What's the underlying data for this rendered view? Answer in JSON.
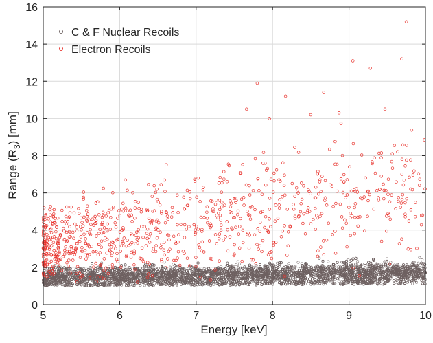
{
  "chart_data": {
    "type": "scatter",
    "xlabel": "Energy [keV]",
    "ylabel_parts": [
      "Range (R",
      "3",
      ") [mm]"
    ],
    "xlim": [
      5,
      10
    ],
    "ylim": [
      0,
      16
    ],
    "x_ticks": [
      5,
      6,
      7,
      8,
      9,
      10
    ],
    "y_ticks": [
      0,
      2,
      4,
      6,
      8,
      10,
      12,
      14,
      16
    ],
    "grid": true,
    "legend_position": "top-left",
    "series": [
      {
        "name": "C & F Nuclear Recoils",
        "color": "#6e6262",
        "marker": "open-circle",
        "distribution": {
          "x_range": [
            5,
            10
          ],
          "y_band_low": [
            1.0,
            1.1
          ],
          "y_band_high": [
            2.2,
            2.5
          ],
          "y_center": [
            1.45,
            1.7
          ],
          "approx_points": 9000
        }
      },
      {
        "name": "Electron Recoils",
        "color": "#e8322c",
        "marker": "open-circle",
        "distribution": {
          "x_range": [
            5,
            10
          ],
          "approx_points": 900,
          "y_typical_low": [
            1.5,
            3.0
          ],
          "y_typical_high": [
            5.0,
            9.5
          ],
          "outliers": [
            {
              "x": 9.75,
              "y": 15.2
            },
            {
              "x": 9.69,
              "y": 13.2
            },
            {
              "x": 9.05,
              "y": 13.1
            },
            {
              "x": 9.28,
              "y": 12.7
            },
            {
              "x": 7.8,
              "y": 11.9
            },
            {
              "x": 8.17,
              "y": 11.2
            },
            {
              "x": 8.67,
              "y": 11.4
            },
            {
              "x": 7.66,
              "y": 10.5
            },
            {
              "x": 8.87,
              "y": 10.3
            },
            {
              "x": 9.47,
              "y": 10.5
            },
            {
              "x": 7.96,
              "y": 10.0
            },
            {
              "x": 8.5,
              "y": 10.2
            }
          ]
        }
      }
    ]
  }
}
